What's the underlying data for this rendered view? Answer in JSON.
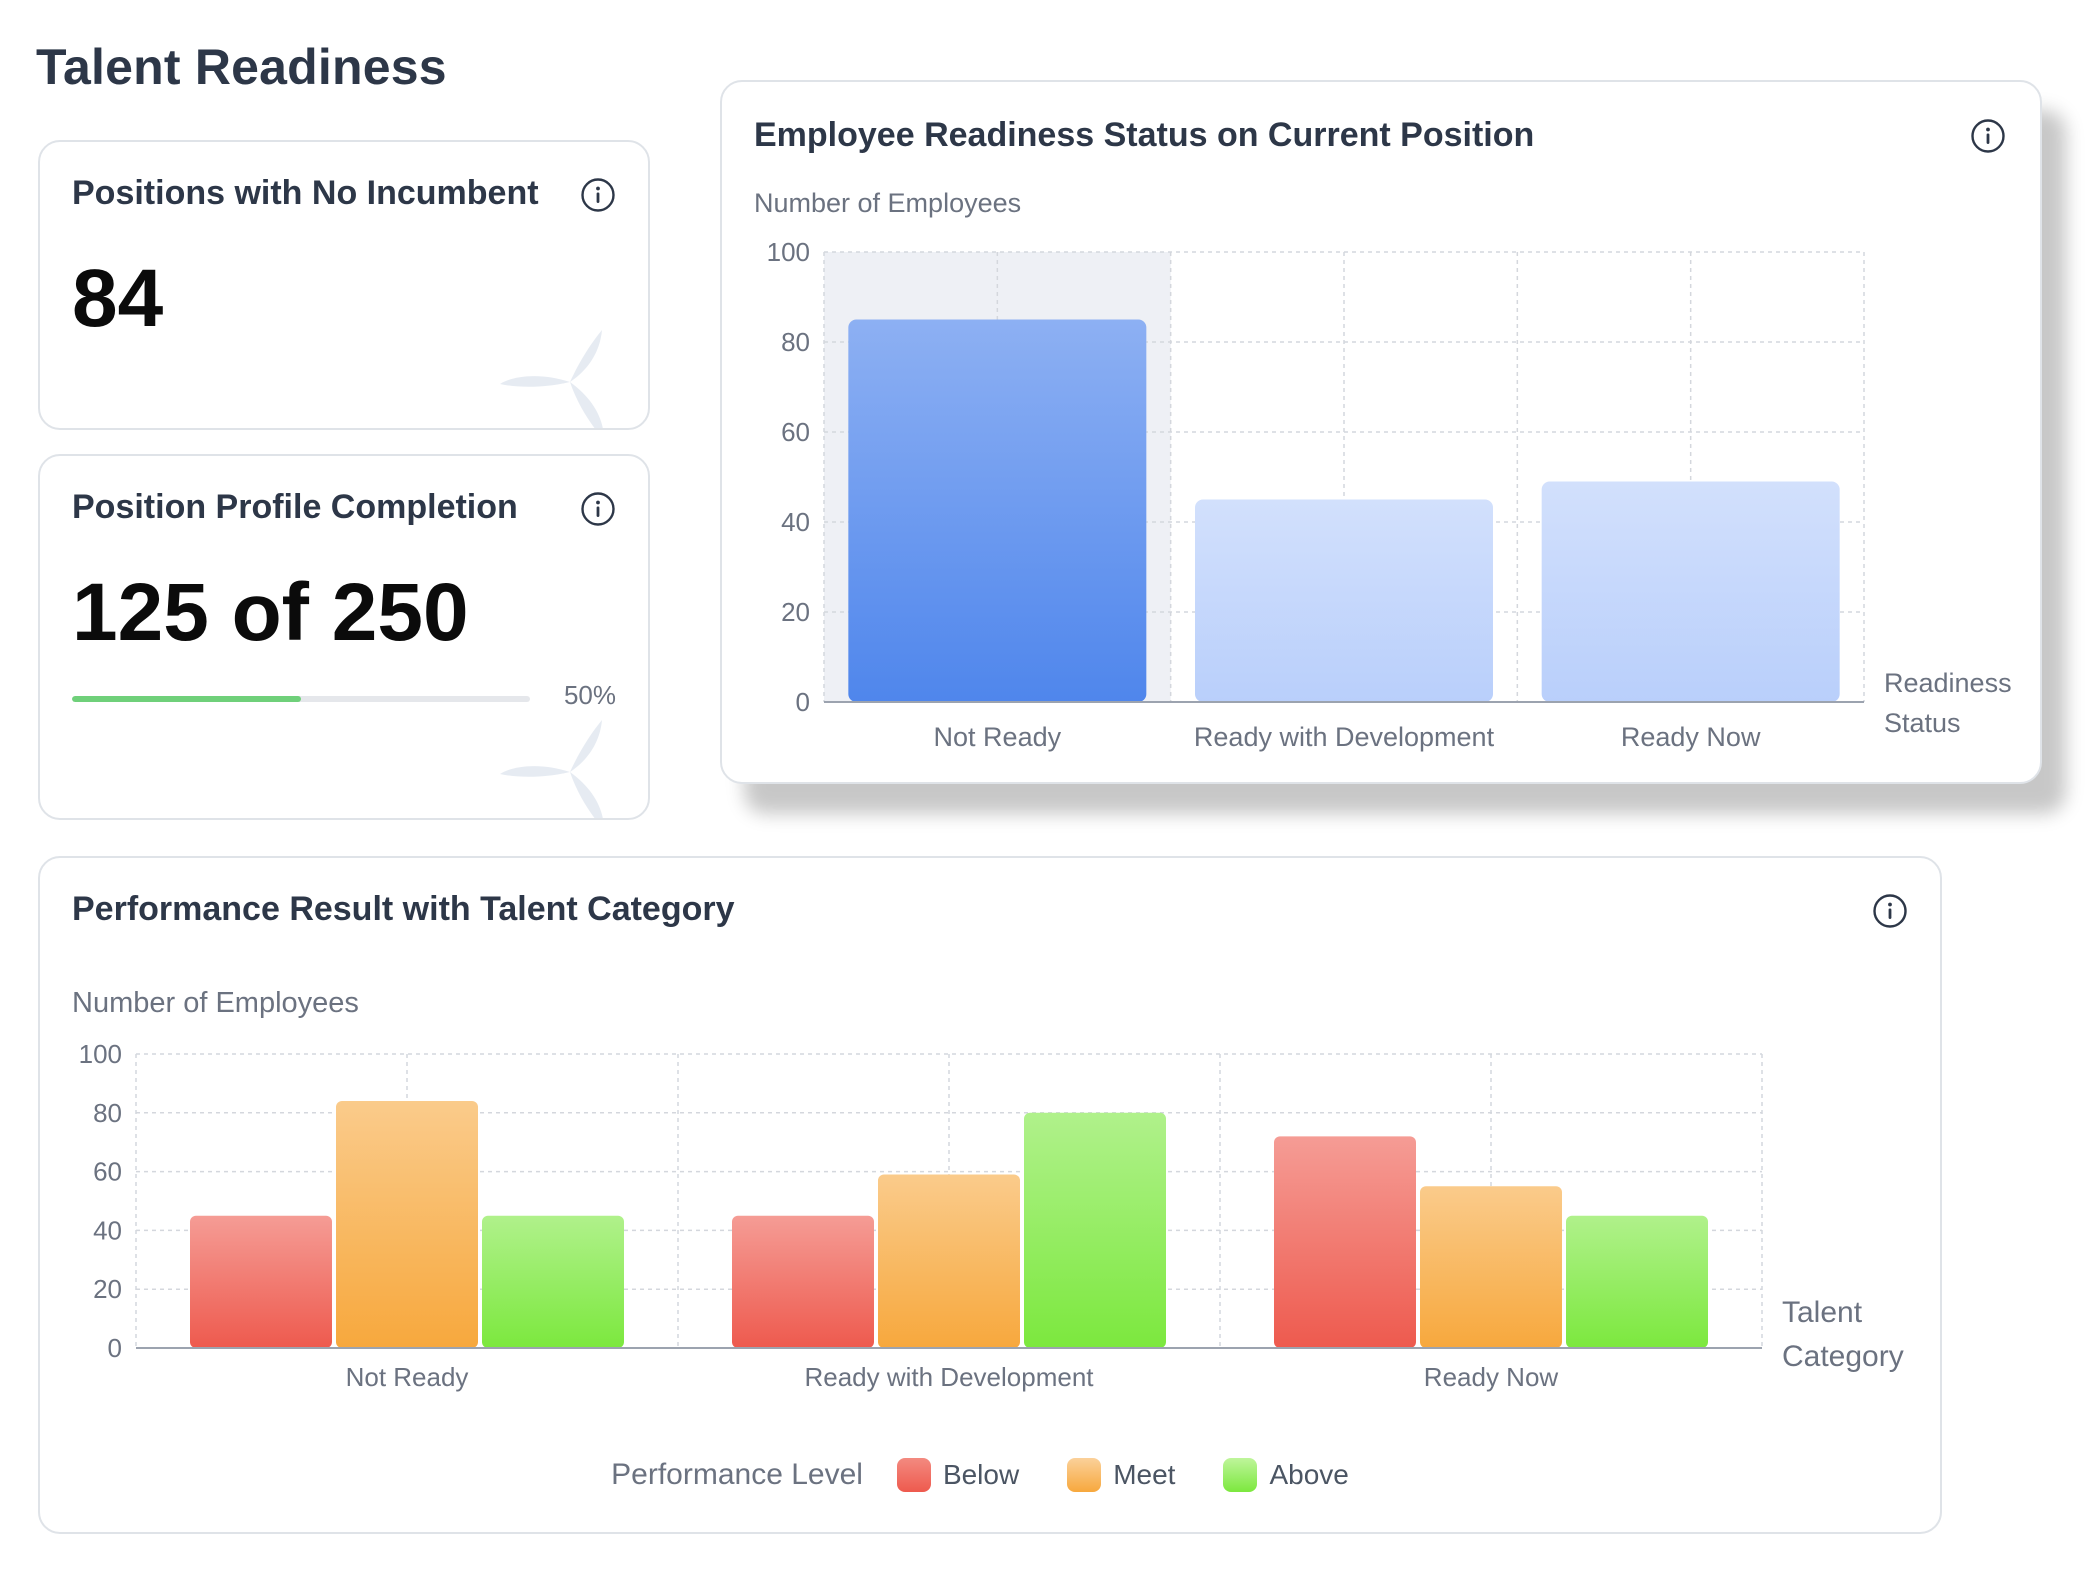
{
  "page": {
    "title": "Talent Readiness"
  },
  "cards": {
    "no_incumbent": {
      "title": "Positions with No Incumbent",
      "value": "84",
      "icon": "info-icon"
    },
    "profile_completion": {
      "title": "Position Profile Completion",
      "value": "125 of 250",
      "progress": 0.5,
      "progress_label": "50%",
      "progress_color": "#6fd07a",
      "icon": "info-icon"
    }
  },
  "readiness_chart": {
    "title": "Employee Readiness Status on Current Position",
    "icon": "info-icon"
  },
  "performance_chart": {
    "title": "Performance Result with Talent Category",
    "icon": "info-icon",
    "legend_title": "Performance Level"
  },
  "chart_data": [
    {
      "type": "bar",
      "title": "Employee Readiness Status on Current Position",
      "ylabel": "Number of Employees",
      "xlabel": "Readiness Status",
      "categories": [
        "Not Ready",
        "Ready with Development",
        "Ready Now"
      ],
      "values": [
        85,
        45,
        49
      ],
      "ylim": [
        0,
        100
      ],
      "yticks": [
        0,
        20,
        40,
        60,
        80,
        100
      ],
      "grid": true,
      "highlighted_category": "Not Ready",
      "colors": {
        "highlight": "#4f86ec",
        "default": "#b9cffb"
      }
    },
    {
      "type": "bar",
      "title": "Performance Result with Talent Category",
      "ylabel": "Number of Employees",
      "xlabel": "Talent Category",
      "categories": [
        "Not Ready",
        "Ready with Development",
        "Ready Now"
      ],
      "series": [
        {
          "name": "Below",
          "values": [
            45,
            45,
            72
          ],
          "color": "#ee5a4e"
        },
        {
          "name": "Meet",
          "values": [
            84,
            59,
            55
          ],
          "color": "#f7a83d"
        },
        {
          "name": "Above",
          "values": [
            45,
            80,
            45
          ],
          "color": "#7ce83e"
        }
      ],
      "ylim": [
        0,
        100
      ],
      "yticks": [
        0,
        20,
        40,
        60,
        80,
        100
      ],
      "grid": true,
      "legend_placement": "bottom"
    }
  ]
}
